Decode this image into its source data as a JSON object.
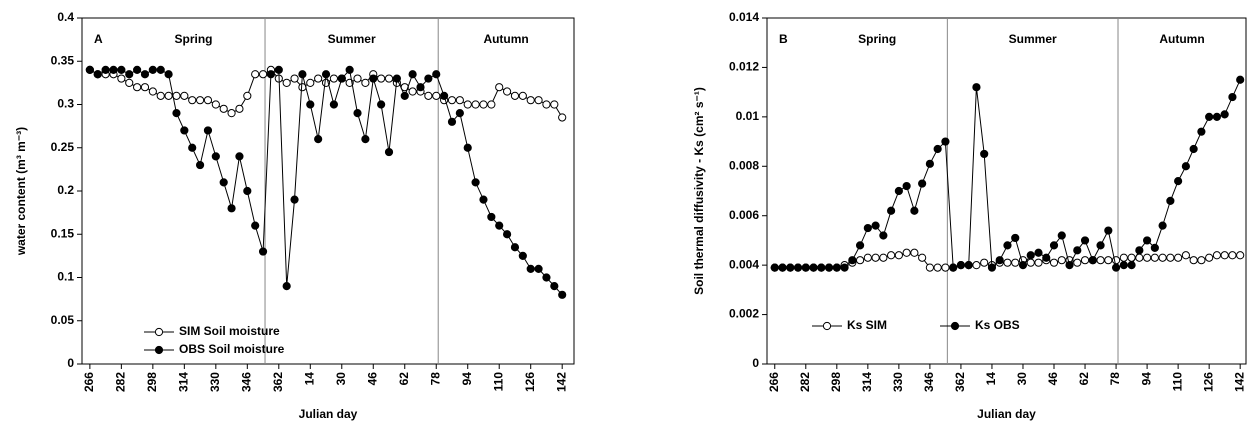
{
  "chart_data": [
    {
      "type": "line",
      "panel": "A",
      "ylabel": "water content (m³ m⁻³)",
      "xlabel": "Julian day",
      "seasons": [
        "Spring",
        "Summer",
        "Autumn"
      ],
      "season_boundaries": [
        355,
        443
      ],
      "legend": "lower left",
      "x": [
        266,
        270,
        274,
        278,
        282,
        286,
        290,
        294,
        298,
        302,
        306,
        310,
        314,
        318,
        322,
        326,
        330,
        334,
        338,
        342,
        346,
        350,
        354,
        358,
        362,
        366,
        370,
        374,
        378,
        382,
        386,
        390,
        394,
        398,
        402,
        406,
        410,
        414,
        418,
        422,
        426,
        430,
        434,
        438,
        442,
        446,
        450,
        454,
        458,
        462,
        466,
        470,
        474,
        478,
        482,
        486,
        490,
        494,
        498,
        502,
        506
      ],
      "xlim": [
        262,
        512
      ],
      "xticks": [
        266,
        282,
        298,
        314,
        330,
        346,
        362,
        {
          "value": 378,
          "label": "14"
        },
        {
          "value": 394,
          "label": "30"
        },
        {
          "value": 410,
          "label": "46"
        },
        {
          "value": 426,
          "label": "62"
        },
        {
          "value": 442,
          "label": "78"
        },
        {
          "value": 458,
          "label": "94"
        },
        {
          "value": 474,
          "label": "110"
        },
        {
          "value": 490,
          "label": "126"
        },
        {
          "value": 506,
          "label": "142"
        }
      ],
      "ylim": [
        0,
        0.4
      ],
      "yticks": [
        0,
        0.05,
        0.1,
        0.15,
        0.2,
        0.25,
        0.3,
        0.35,
        0.4
      ],
      "series": [
        {
          "name": "SIM Soil moisture",
          "color": "#ffffff",
          "values": [
            0.34,
            0.335,
            0.335,
            0.335,
            0.33,
            0.325,
            0.32,
            0.32,
            0.315,
            0.31,
            0.31,
            0.31,
            0.31,
            0.305,
            0.305,
            0.305,
            0.3,
            0.295,
            0.29,
            0.295,
            0.31,
            0.335,
            0.335,
            0.34,
            0.33,
            0.325,
            0.33,
            0.32,
            0.325,
            0.33,
            0.325,
            0.33,
            0.33,
            0.325,
            0.33,
            0.325,
            0.335,
            0.33,
            0.33,
            0.325,
            0.32,
            0.315,
            0.315,
            0.31,
            0.31,
            0.305,
            0.305,
            0.305,
            0.3,
            0.3,
            0.3,
            0.3,
            0.32,
            0.315,
            0.31,
            0.31,
            0.305,
            0.305,
            0.3,
            0.3,
            0.285
          ]
        },
        {
          "name": "OBS Soil moisture",
          "color": "#000000",
          "values": [
            0.34,
            0.335,
            0.34,
            0.34,
            0.34,
            0.335,
            0.34,
            0.335,
            0.34,
            0.34,
            0.335,
            0.29,
            0.27,
            0.25,
            0.23,
            0.27,
            0.24,
            0.21,
            0.18,
            0.24,
            0.2,
            0.16,
            0.13,
            0.335,
            0.34,
            0.09,
            0.19,
            0.335,
            0.3,
            0.26,
            0.335,
            0.3,
            0.33,
            0.34,
            0.29,
            0.26,
            0.33,
            0.3,
            0.245,
            0.33,
            0.31,
            0.335,
            0.32,
            0.33,
            0.335,
            0.31,
            0.28,
            0.29,
            0.25,
            0.21,
            0.19,
            0.17,
            0.16,
            0.15,
            0.135,
            0.125,
            0.11,
            0.11,
            0.1,
            0.09,
            0.08
          ]
        }
      ]
    },
    {
      "type": "line",
      "panel": "B",
      "ylabel": "Soil thermal diffusivity - Ks (cm² s⁻¹)",
      "xlabel": "Julian day",
      "seasons": [
        "Spring",
        "Summer",
        "Autumn"
      ],
      "season_boundaries": [
        355,
        443
      ],
      "legend": "lower left",
      "x": [
        266,
        270,
        274,
        278,
        282,
        286,
        290,
        294,
        298,
        302,
        306,
        310,
        314,
        318,
        322,
        326,
        330,
        334,
        338,
        342,
        346,
        350,
        354,
        358,
        362,
        366,
        370,
        374,
        378,
        382,
        386,
        390,
        394,
        398,
        402,
        406,
        410,
        414,
        418,
        422,
        426,
        430,
        434,
        438,
        442,
        446,
        450,
        454,
        458,
        462,
        466,
        470,
        474,
        478,
        482,
        486,
        490,
        494,
        498,
        502,
        506
      ],
      "xlim": [
        262,
        509
      ],
      "xticks": [
        266,
        282,
        298,
        314,
        330,
        346,
        362,
        {
          "value": 378,
          "label": "14"
        },
        {
          "value": 394,
          "label": "30"
        },
        {
          "value": 410,
          "label": "46"
        },
        {
          "value": 426,
          "label": "62"
        },
        {
          "value": 442,
          "label": "78"
        },
        {
          "value": 458,
          "label": "94"
        },
        {
          "value": 474,
          "label": "110"
        },
        {
          "value": 490,
          "label": "126"
        },
        {
          "value": 506,
          "label": "142"
        }
      ],
      "ylim": [
        0,
        0.014
      ],
      "yticks": [
        0,
        0.002,
        0.004,
        0.006,
        0.008,
        0.01,
        0.012,
        0.014
      ],
      "series": [
        {
          "name": "Ks SIM",
          "color": "#ffffff",
          "values": [
            0.0039,
            0.0039,
            0.0039,
            0.0039,
            0.0039,
            0.0039,
            0.0039,
            0.0039,
            0.0039,
            0.004,
            0.0041,
            0.0042,
            0.0043,
            0.0043,
            0.0043,
            0.0044,
            0.0044,
            0.0045,
            0.0045,
            0.0043,
            0.0039,
            0.0039,
            0.0039,
            0.0039,
            0.004,
            0.004,
            0.004,
            0.0041,
            0.004,
            0.0041,
            0.0041,
            0.0041,
            0.0042,
            0.0041,
            0.0041,
            0.0042,
            0.0041,
            0.0042,
            0.0042,
            0.0041,
            0.0042,
            0.0042,
            0.0042,
            0.0042,
            0.0042,
            0.0043,
            0.0043,
            0.0043,
            0.0043,
            0.0043,
            0.0043,
            0.0043,
            0.0043,
            0.0044,
            0.0042,
            0.0042,
            0.0043,
            0.0044,
            0.0044,
            0.0044,
            0.0044
          ]
        },
        {
          "name": "Ks OBS",
          "color": "#000000",
          "values": [
            0.0039,
            0.0039,
            0.0039,
            0.0039,
            0.0039,
            0.0039,
            0.0039,
            0.0039,
            0.0039,
            0.0039,
            0.0042,
            0.0048,
            0.0055,
            0.0056,
            0.0052,
            0.0062,
            0.007,
            0.0072,
            0.0062,
            0.0073,
            0.0081,
            0.0087,
            0.009,
            0.0039,
            0.004,
            0.004,
            0.0112,
            0.0085,
            0.0039,
            0.0042,
            0.0048,
            0.0051,
            0.004,
            0.0044,
            0.0045,
            0.0043,
            0.0048,
            0.0052,
            0.004,
            0.0046,
            0.005,
            0.0042,
            0.0048,
            0.0054,
            0.0039,
            0.004,
            0.004,
            0.0046,
            0.005,
            0.0047,
            0.0056,
            0.0066,
            0.0074,
            0.008,
            0.0087,
            0.0094,
            0.01,
            0.01,
            0.0101,
            0.0108,
            0.0115
          ]
        }
      ]
    }
  ]
}
